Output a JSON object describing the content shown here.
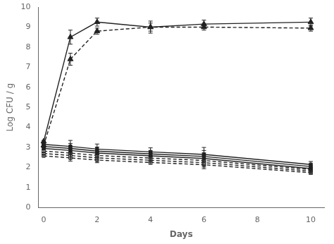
{
  "chart_data": {
    "type": "line",
    "xlabel": "Days",
    "ylabel": "Log CFU / g",
    "xlim": [
      -0.2,
      10.5
    ],
    "ylim": [
      0,
      10
    ],
    "xticks": [
      0,
      2,
      4,
      6,
      8,
      10
    ],
    "yticks": [
      0,
      1,
      2,
      3,
      4,
      5,
      6,
      7,
      8,
      9,
      10
    ],
    "grid": false,
    "x": [
      0,
      1,
      2,
      4,
      6,
      10
    ],
    "series": [
      {
        "values": [
          3.3,
          8.5,
          9.25,
          9.0,
          9.15,
          9.25
        ],
        "yerr": [
          0.05,
          0.35,
          0.2,
          0.3,
          0.2,
          0.2
        ],
        "color": "#222222",
        "marker": "triangle",
        "line_style": "solid"
      },
      {
        "values": [
          3.1,
          7.4,
          8.8,
          9.0,
          9.0,
          8.95
        ],
        "yerr": [
          0.05,
          0.3,
          0.15,
          0.2,
          0.15,
          0.15
        ],
        "color": "#222222",
        "marker": "triangle",
        "line_style": "dashed"
      },
      {
        "values": [
          3.15,
          3.05,
          2.92,
          2.78,
          2.65,
          2.15
        ],
        "yerr": [
          0.05,
          0.3,
          0.25,
          0.2,
          0.35,
          0.15
        ],
        "color": "#222222",
        "marker": "square",
        "line_style": "solid"
      },
      {
        "values": [
          3.05,
          2.95,
          2.82,
          2.68,
          2.55,
          2.05
        ],
        "yerr": [
          0.05,
          0.25,
          0.2,
          0.15,
          0.3,
          0.12
        ],
        "color": "#222222",
        "marker": "square",
        "line_style": "solid"
      },
      {
        "values": [
          2.95,
          2.85,
          2.72,
          2.58,
          2.45,
          1.95
        ],
        "yerr": [
          0.05,
          0.22,
          0.18,
          0.13,
          0.28,
          0.1
        ],
        "color": "#222222",
        "marker": "square",
        "line_style": "solid"
      },
      {
        "values": [
          2.82,
          2.72,
          2.6,
          2.47,
          2.35,
          1.9
        ],
        "yerr": [
          0.05,
          0.2,
          0.17,
          0.12,
          0.25,
          0.1
        ],
        "color": "#222222",
        "marker": "open_square",
        "line_style": "dashed"
      },
      {
        "values": [
          2.7,
          2.6,
          2.48,
          2.36,
          2.24,
          1.82
        ],
        "yerr": [
          0.04,
          0.18,
          0.15,
          0.1,
          0.22,
          0.09
        ],
        "color": "#222222",
        "marker": "open_square",
        "line_style": "dashed"
      },
      {
        "values": [
          2.58,
          2.48,
          2.37,
          2.25,
          2.14,
          1.74
        ],
        "yerr": [
          0.04,
          0.16,
          0.13,
          0.09,
          0.2,
          0.08
        ],
        "color": "#222222",
        "marker": "open_square",
        "line_style": "dashed"
      }
    ]
  }
}
